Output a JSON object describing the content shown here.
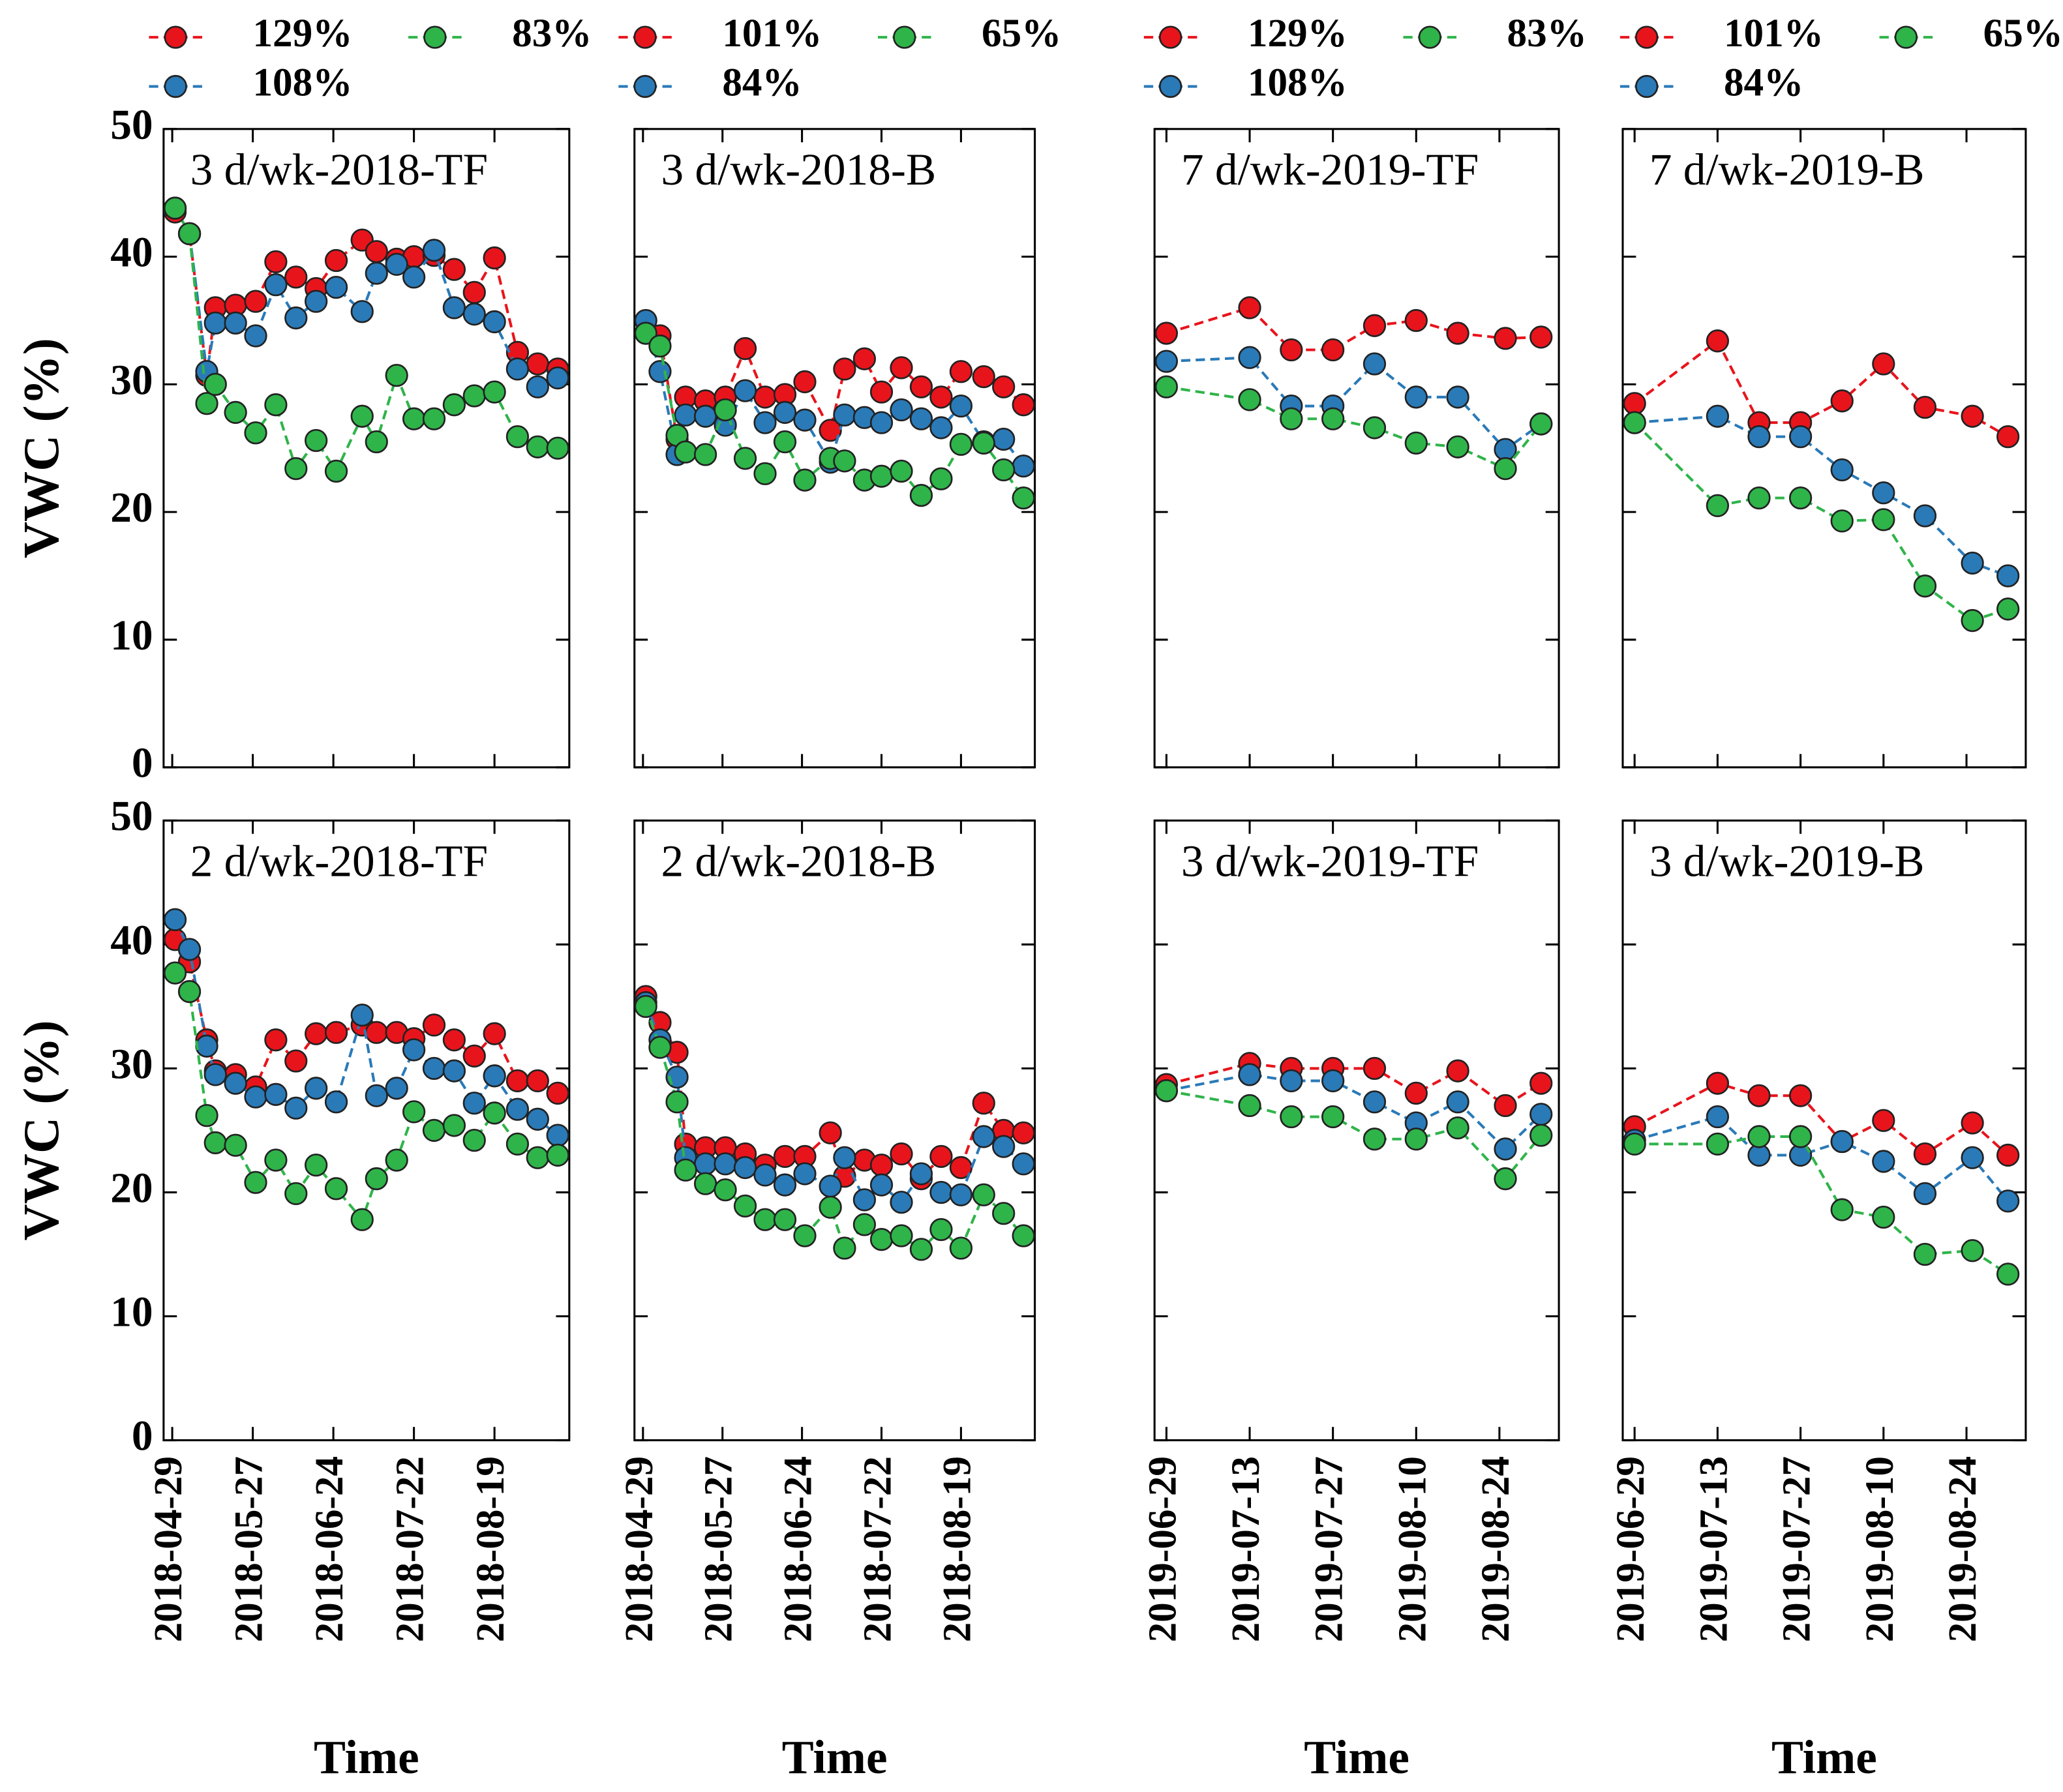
{
  "chart_data": [
    {
      "type": "line",
      "title": "3 d/wk-2018-TF",
      "ylabel": "VWC (%)",
      "x": [
        "2018-04-30",
        "2018-05-05",
        "2018-05-11",
        "2018-05-14",
        "2018-05-21",
        "2018-05-28",
        "2018-06-04",
        "2018-06-11",
        "2018-06-18",
        "2018-06-25",
        "2018-07-04",
        "2018-07-09",
        "2018-07-16",
        "2018-07-22",
        "2018-07-29",
        "2018-08-05",
        "2018-08-12",
        "2018-08-19",
        "2018-08-27",
        "2018-09-03",
        "2018-09-10"
      ],
      "xlim": [
        "2018-04-26",
        "2018-09-14"
      ],
      "ylim": [
        0,
        50
      ],
      "yticks": [
        0,
        10,
        20,
        30,
        40,
        50
      ],
      "series": [
        {
          "name": "129%",
          "color": "#e8141c",
          "values": [
            43.5,
            41.8,
            30.7,
            36,
            36.2,
            36.5,
            39.6,
            38.4,
            37.5,
            39.7,
            41.3,
            40.4,
            39.8,
            40,
            40.1,
            39,
            37.2,
            39.9,
            32.5,
            31.6,
            31.2
          ]
        },
        {
          "name": "108%",
          "color": "#2a7ab8",
          "values": [
            43.8,
            41.8,
            31,
            34.8,
            34.8,
            33.8,
            37.8,
            35.2,
            36.5,
            37.6,
            35.7,
            38.7,
            39.4,
            38.4,
            40.5,
            36,
            35.5,
            34.9,
            31.2,
            29.8,
            30.5
          ]
        },
        {
          "name": "83%",
          "color": "#2fb44a",
          "values": [
            43.8,
            41.8,
            28.5,
            30,
            27.8,
            26.2,
            28.4,
            23.4,
            25.6,
            23.2,
            27.5,
            25.5,
            30.7,
            27.3,
            27.3,
            28.4,
            29.1,
            29.4,
            25.9,
            25.1,
            25
          ]
        }
      ]
    },
    {
      "type": "line",
      "title": "3 d/wk-2018-B",
      "x": [
        "2018-04-30",
        "2018-05-05",
        "2018-05-11",
        "2018-05-14",
        "2018-05-21",
        "2018-05-28",
        "2018-06-04",
        "2018-06-11",
        "2018-06-18",
        "2018-06-25",
        "2018-07-04",
        "2018-07-09",
        "2018-07-16",
        "2018-07-22",
        "2018-07-29",
        "2018-08-05",
        "2018-08-12",
        "2018-08-19",
        "2018-08-27",
        "2018-09-03",
        "2018-09-10"
      ],
      "xlim": [
        "2018-04-26",
        "2018-09-14"
      ],
      "ylim": [
        0,
        50
      ],
      "yticks": [
        0,
        10,
        20,
        30,
        40,
        50
      ],
      "series": [
        {
          "name": "101%",
          "color": "#e8141c",
          "values": [
            34,
            33.8,
            25.7,
            29,
            28.7,
            29,
            32.8,
            29,
            29.2,
            30.2,
            26.4,
            31.2,
            32,
            29.4,
            31.3,
            29.8,
            29,
            31,
            30.6,
            29.8,
            28.4
          ]
        },
        {
          "name": "84%",
          "color": "#2a7ab8",
          "values": [
            35,
            31,
            24.5,
            27.6,
            27.5,
            26.8,
            29.5,
            27,
            27.8,
            27.2,
            23.9,
            27.6,
            27.4,
            27,
            28,
            27.3,
            26.6,
            28.3,
            25.5,
            25.7,
            23.6
          ]
        },
        {
          "name": "65%",
          "color": "#2fb44a",
          "values": [
            34,
            33,
            26,
            24.7,
            24.5,
            28,
            24.2,
            23,
            25.5,
            22.5,
            24.2,
            24,
            22.5,
            22.8,
            23.2,
            21.3,
            22.6,
            25.3,
            25.4,
            23.3,
            21.1
          ]
        }
      ]
    },
    {
      "type": "line",
      "title": "7 d/wk-2019-TF",
      "x": [
        "2019-06-29",
        "2019-07-13",
        "2019-07-20",
        "2019-07-27",
        "2019-08-03",
        "2019-08-10",
        "2019-08-17",
        "2019-08-25",
        "2019-08-31"
      ],
      "xlim": [
        "2019-06-27",
        "2019-09-03"
      ],
      "ylim": [
        0,
        50
      ],
      "yticks": [
        0,
        10,
        20,
        30,
        40,
        50
      ],
      "series": [
        {
          "name": "129%",
          "color": "#e8141c",
          "values": [
            34,
            36,
            32.7,
            32.7,
            34.6,
            35,
            34,
            33.6,
            33.7
          ]
        },
        {
          "name": "108%",
          "color": "#2a7ab8",
          "values": [
            31.8,
            32.1,
            28.3,
            28.3,
            31.6,
            29,
            29,
            24.9,
            26.9
          ]
        },
        {
          "name": "83%",
          "color": "#2fb44a",
          "values": [
            29.8,
            28.8,
            27.3,
            27.3,
            26.6,
            25.4,
            25.1,
            23.4,
            26.9
          ]
        }
      ]
    },
    {
      "type": "line",
      "title": "7 d/wk-2019-B",
      "x": [
        "2019-06-29",
        "2019-07-13",
        "2019-07-20",
        "2019-07-27",
        "2019-08-03",
        "2019-08-10",
        "2019-08-17",
        "2019-08-25",
        "2019-08-31"
      ],
      "xlim": [
        "2019-06-27",
        "2019-09-03"
      ],
      "ylim": [
        0,
        50
      ],
      "yticks": [
        0,
        10,
        20,
        30,
        40,
        50
      ],
      "series": [
        {
          "name": "101%",
          "color": "#e8141c",
          "values": [
            28.5,
            33.4,
            27,
            27,
            28.7,
            31.6,
            28.2,
            27.5,
            25.9
          ]
        },
        {
          "name": "84%",
          "color": "#2a7ab8",
          "values": [
            27,
            27.5,
            25.9,
            25.9,
            23.3,
            21.5,
            19.7,
            16,
            15
          ]
        },
        {
          "name": "65%",
          "color": "#2fb44a",
          "values": [
            27,
            20.5,
            21.1,
            21.1,
            19.3,
            19.4,
            14.2,
            11.5,
            12.4
          ]
        }
      ]
    },
    {
      "type": "line",
      "title": "2 d/wk-2018-TF",
      "ylabel": "VWC (%)",
      "xlabel": "Time",
      "x": [
        "2018-04-30",
        "2018-05-05",
        "2018-05-11",
        "2018-05-14",
        "2018-05-21",
        "2018-05-28",
        "2018-06-04",
        "2018-06-11",
        "2018-06-18",
        "2018-06-25",
        "2018-07-04",
        "2018-07-09",
        "2018-07-16",
        "2018-07-22",
        "2018-07-29",
        "2018-08-05",
        "2018-08-12",
        "2018-08-19",
        "2018-08-27",
        "2018-09-03",
        "2018-09-10"
      ],
      "xlim": [
        "2018-04-26",
        "2018-09-14"
      ],
      "xticks": [
        "2018-04-29",
        "2018-05-27",
        "2018-06-24",
        "2018-07-22",
        "2018-08-19"
      ],
      "ylim": [
        0,
        50
      ],
      "yticks": [
        0,
        10,
        20,
        30,
        40,
        50
      ],
      "series": [
        {
          "color": "#e8141c",
          "values": [
            40.4,
            38.6,
            32.3,
            29.8,
            29.5,
            28.5,
            32.3,
            30.6,
            32.8,
            32.9,
            33.5,
            32.9,
            32.9,
            32.4,
            33.5,
            32.3,
            31,
            32.8,
            29,
            29,
            28
          ]
        },
        {
          "color": "#2a7ab8",
          "values": [
            42,
            39.6,
            31.8,
            29.5,
            28.8,
            27.7,
            27.9,
            26.8,
            28.4,
            27.3,
            34.3,
            27.8,
            28.4,
            31.5,
            30,
            29.8,
            27.2,
            29.4,
            26.7,
            25.9,
            24.6
          ]
        },
        {
          "color": "#2fb44a",
          "values": [
            37.7,
            36.2,
            26.2,
            24,
            23.8,
            20.8,
            22.6,
            19.9,
            22.2,
            20.3,
            17.8,
            21.1,
            22.6,
            26.5,
            25,
            25.4,
            24.2,
            26.4,
            23.9,
            22.8,
            23
          ]
        }
      ]
    },
    {
      "type": "line",
      "title": "2 d/wk-2018-B",
      "xlabel": "Time",
      "x": [
        "2018-04-30",
        "2018-05-05",
        "2018-05-11",
        "2018-05-14",
        "2018-05-21",
        "2018-05-28",
        "2018-06-04",
        "2018-06-11",
        "2018-06-18",
        "2018-06-25",
        "2018-07-04",
        "2018-07-09",
        "2018-07-16",
        "2018-07-22",
        "2018-07-29",
        "2018-08-05",
        "2018-08-12",
        "2018-08-19",
        "2018-08-27",
        "2018-09-03",
        "2018-09-10"
      ],
      "xlim": [
        "2018-04-26",
        "2018-09-14"
      ],
      "xticks": [
        "2018-04-29",
        "2018-05-27",
        "2018-06-24",
        "2018-07-22",
        "2018-08-19"
      ],
      "ylim": [
        0,
        50
      ],
      "yticks": [
        0,
        10,
        20,
        30,
        40,
        50
      ],
      "series": [
        {
          "color": "#e8141c",
          "values": [
            35.8,
            33.7,
            31.3,
            23.9,
            23.6,
            23.6,
            23.1,
            22.2,
            22.9,
            22.9,
            24.8,
            21.3,
            22.6,
            22.2,
            23.1,
            21.1,
            22.9,
            22,
            27.2,
            25,
            24.8
          ]
        },
        {
          "color": "#2a7ab8",
          "values": [
            35.3,
            32.3,
            29.3,
            22.8,
            22.3,
            22.3,
            22,
            21.4,
            20.6,
            21.5,
            20.5,
            22.8,
            19.4,
            20.6,
            19.2,
            21.5,
            20,
            19.8,
            24.5,
            23.7,
            22.3
          ]
        },
        {
          "color": "#2fb44a",
          "values": [
            35,
            31.7,
            27.3,
            21.8,
            20.7,
            20.2,
            18.9,
            17.8,
            17.8,
            16.5,
            18.8,
            15.5,
            17.4,
            16.2,
            16.5,
            15.4,
            17,
            15.5,
            19.8,
            18.3,
            16.5
          ]
        }
      ]
    },
    {
      "type": "line",
      "title": "3 d/wk-2019-TF",
      "xlabel": "Time",
      "x": [
        "2019-06-29",
        "2019-07-13",
        "2019-07-20",
        "2019-07-27",
        "2019-08-03",
        "2019-08-10",
        "2019-08-17",
        "2019-08-25",
        "2019-08-31"
      ],
      "xlim": [
        "2019-06-27",
        "2019-09-03"
      ],
      "xticks": [
        "2019-06-29",
        "2019-07-13",
        "2019-07-27",
        "2019-08-10",
        "2019-08-24"
      ],
      "ylim": [
        0,
        50
      ],
      "yticks": [
        0,
        10,
        20,
        30,
        40,
        50
      ],
      "series": [
        {
          "color": "#e8141c",
          "values": [
            28.7,
            30.4,
            30,
            30,
            30,
            28,
            29.8,
            27,
            28.8
          ]
        },
        {
          "color": "#2a7ab8",
          "values": [
            28.2,
            29.5,
            29,
            29,
            27.3,
            25.6,
            27.3,
            23.5,
            26.3
          ]
        },
        {
          "color": "#2fb44a",
          "values": [
            28.2,
            27,
            26.1,
            26.1,
            24.3,
            24.3,
            25.2,
            21.1,
            24.6
          ]
        }
      ]
    },
    {
      "type": "line",
      "title": "3 d/wk-2019-B",
      "xlabel": "Time",
      "x": [
        "2019-06-29",
        "2019-07-13",
        "2019-07-20",
        "2019-07-27",
        "2019-08-03",
        "2019-08-10",
        "2019-08-17",
        "2019-08-25",
        "2019-08-31"
      ],
      "xlim": [
        "2019-06-27",
        "2019-09-03"
      ],
      "xticks": [
        "2019-06-29",
        "2019-07-13",
        "2019-07-27",
        "2019-08-10",
        "2019-08-24"
      ],
      "ylim": [
        0,
        50
      ],
      "yticks": [
        0,
        10,
        20,
        30,
        40,
        50
      ],
      "series": [
        {
          "color": "#e8141c",
          "values": [
            25.3,
            28.8,
            27.8,
            27.8,
            24.1,
            25.8,
            23.1,
            25.6,
            23
          ]
        },
        {
          "color": "#2a7ab8",
          "values": [
            24.2,
            26.1,
            23,
            23,
            24.1,
            22.5,
            19.9,
            22.8,
            19.3
          ]
        },
        {
          "color": "#2fb44a",
          "values": [
            23.9,
            23.9,
            24.5,
            24.5,
            18.6,
            18,
            15,
            15.3,
            13.4
          ]
        }
      ]
    }
  ]
}
